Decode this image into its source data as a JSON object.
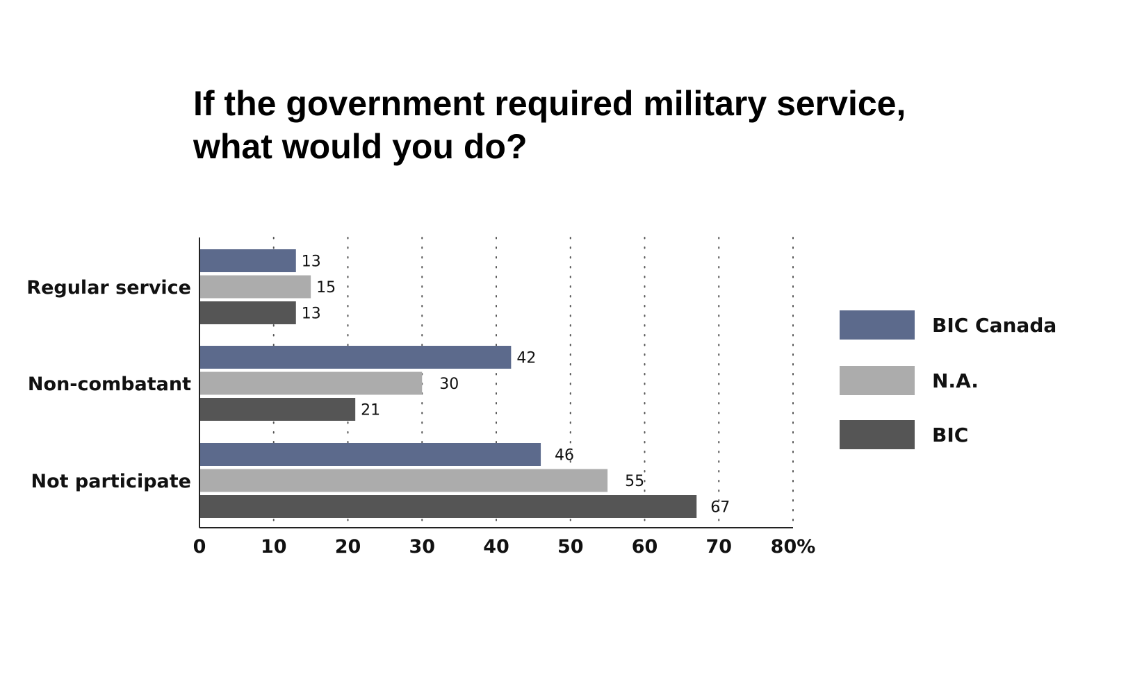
{
  "chart_data": {
    "type": "bar",
    "orientation": "horizontal",
    "title_lines": [
      "If the government required military service,",
      "what would you do?"
    ],
    "categories": [
      "Regular service",
      "Non-combatant",
      "Not participate"
    ],
    "series": [
      {
        "name": "BIC Canada",
        "values": [
          13,
          42,
          46
        ],
        "color": "#5c6a8c"
      },
      {
        "name": "N.A.",
        "values": [
          15,
          30,
          55
        ],
        "color": "#acacac"
      },
      {
        "name": "BIC",
        "values": [
          13,
          21,
          67
        ],
        "color": "#555555"
      }
    ],
    "xlim": [
      0,
      80
    ],
    "x_ticks": [
      "0",
      "10",
      "20",
      "30",
      "40",
      "50",
      "60",
      "70",
      "80%"
    ],
    "x_tick_values": [
      0,
      10,
      20,
      30,
      40,
      50,
      60,
      70,
      80
    ],
    "grid": "vertical dotted",
    "legend_position": "right"
  }
}
